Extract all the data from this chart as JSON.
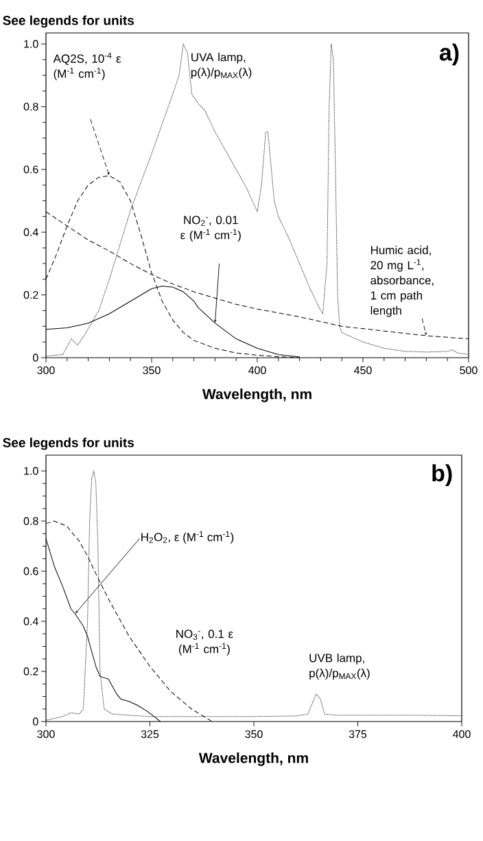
{
  "chart_data": [
    {
      "type": "line",
      "ylabel": "See legends for units",
      "xlabel": "Wavelength, nm",
      "annotations": [
        "a)"
      ],
      "xlim": [
        300,
        500
      ],
      "ylim": [
        0,
        1.035
      ],
      "xticks": [
        300,
        {
          "value": 310,
          "label": null
        },
        {
          "value": 320,
          "label": null
        },
        {
          "value": 330,
          "label": null
        },
        {
          "value": 340,
          "label": null
        },
        350,
        {
          "value": 360,
          "label": null
        },
        {
          "value": 370,
          "label": null
        },
        {
          "value": 380,
          "label": null
        },
        {
          "value": 390,
          "label": null
        },
        400,
        {
          "value": 410,
          "label": null
        },
        {
          "value": 420,
          "label": null
        },
        {
          "value": 430,
          "label": null
        },
        {
          "value": 440,
          "label": null
        },
        450,
        {
          "value": 460,
          "label": null
        },
        {
          "value": 470,
          "label": null
        },
        {
          "value": 480,
          "label": null
        },
        {
          "value": 490,
          "label": null
        },
        500
      ],
      "yticks": [
        0,
        {
          "value": 0.05,
          "label": null
        },
        {
          "value": 0.1,
          "label": null
        },
        {
          "value": 0.15,
          "label": null
        },
        0.2,
        {
          "value": 0.25,
          "label": null
        },
        {
          "value": 0.3,
          "label": null
        },
        {
          "value": 0.35,
          "label": null
        },
        0.4,
        {
          "value": 0.45,
          "label": null
        },
        {
          "value": 0.5,
          "label": null
        },
        {
          "value": 0.55,
          "label": null
        },
        0.6,
        {
          "value": 0.65,
          "label": null
        },
        {
          "value": 0.7,
          "label": null
        },
        {
          "value": 0.75,
          "label": null
        },
        0.8,
        {
          "value": 0.85,
          "label": null
        },
        {
          "value": 0.9,
          "label": null
        },
        {
          "value": 0.95,
          "label": null
        },
        {
          "value": 1,
          "label": "1.0"
        }
      ],
      "series": [
        {
          "name": "AQ2S, 10$^{-4}$ ε (M$^{-1}$ cm$^{-1}$)",
          "color": "#000000",
          "line_style": "dashed",
          "x": [
            300,
            305,
            310,
            315,
            320,
            325,
            330,
            335,
            340,
            345,
            350,
            355,
            360,
            365,
            370,
            380,
            390,
            400,
            410,
            420
          ],
          "values": [
            0.25,
            0.33,
            0.42,
            0.5,
            0.55,
            0.575,
            0.58,
            0.56,
            0.5,
            0.39,
            0.27,
            0.18,
            0.12,
            0.08,
            0.055,
            0.03,
            0.015,
            0.008,
            0.003,
            0
          ]
        },
        {
          "name": "UVA lamp, p(λ)/p$_{MAX}$(λ)",
          "color": "#000000",
          "line_style": "dotted",
          "x": [
            300,
            308,
            312,
            315,
            318,
            325,
            330,
            340,
            350,
            360,
            363,
            365,
            367,
            369,
            372,
            375,
            380,
            385,
            390,
            395,
            400,
            402,
            404,
            405,
            406,
            408,
            410,
            415,
            420,
            425,
            430,
            431,
            433,
            434,
            435,
            436,
            437,
            438,
            439,
            440,
            450,
            460,
            470,
            480,
            490,
            492,
            495,
            500
          ],
          "values": [
            0.005,
            0.01,
            0.06,
            0.04,
            0.07,
            0.15,
            0.25,
            0.47,
            0.65,
            0.84,
            0.9,
            1.0,
            0.97,
            0.84,
            0.81,
            0.79,
            0.72,
            0.66,
            0.6,
            0.54,
            0.465,
            0.55,
            0.72,
            0.72,
            0.65,
            0.5,
            0.45,
            0.38,
            0.3,
            0.22,
            0.15,
            0.14,
            0.3,
            0.8,
            1.0,
            0.95,
            0.6,
            0.2,
            0.1,
            0.08,
            0.05,
            0.03,
            0.02,
            0.018,
            0.02,
            0.025,
            0.015,
            0.01
          ]
        },
        {
          "name": "NO$_{2}$$^{-}$, 0.01 ε (M$^{-1}$ cm$^{-1}$)",
          "color": "#000000",
          "line_style": "solid",
          "x": [
            300,
            310,
            320,
            330,
            340,
            350,
            355,
            360,
            365,
            370,
            372,
            380,
            390,
            400,
            410,
            420
          ],
          "values": [
            0.09,
            0.095,
            0.11,
            0.14,
            0.18,
            0.22,
            0.228,
            0.225,
            0.21,
            0.18,
            0.16,
            0.11,
            0.06,
            0.03,
            0.01,
            0.002
          ]
        },
        {
          "name": "Humic acid, 20 mg L$^{-1}$, absorbance, 1 cm path length",
          "color": "#000000",
          "line_style": "dashed",
          "x": [
            300,
            310,
            320,
            330,
            340,
            350,
            360,
            370,
            380,
            390,
            400,
            420,
            440,
            460,
            480,
            500
          ],
          "values": [
            0.465,
            0.42,
            0.375,
            0.34,
            0.3,
            0.265,
            0.235,
            0.21,
            0.19,
            0.17,
            0.155,
            0.13,
            0.1,
            0.085,
            0.07,
            0.06
          ]
        }
      ]
    },
    {
      "type": "line",
      "ylabel": "See legends for units",
      "xlabel": "Wavelength, nm",
      "annotations": [
        "b)"
      ],
      "xlim": [
        300,
        400
      ],
      "ylim": [
        0,
        1.063
      ],
      "xticks": [
        300,
        325,
        350,
        375,
        400
      ],
      "yticks": [
        0,
        {
          "value": 0.05,
          "label": null
        },
        {
          "value": 0.1,
          "label": null
        },
        {
          "value": 0.15,
          "label": null
        },
        0.2,
        {
          "value": 0.25,
          "label": null
        },
        {
          "value": 0.3,
          "label": null
        },
        {
          "value": 0.35,
          "label": null
        },
        0.4,
        {
          "value": 0.45,
          "label": null
        },
        {
          "value": 0.5,
          "label": null
        },
        {
          "value": 0.55,
          "label": null
        },
        0.6,
        {
          "value": 0.65,
          "label": null
        },
        {
          "value": 0.7,
          "label": null
        },
        {
          "value": 0.75,
          "label": null
        },
        0.8,
        {
          "value": 0.85,
          "label": null
        },
        {
          "value": 0.9,
          "label": null
        },
        {
          "value": 0.95,
          "label": null
        },
        {
          "value": 1,
          "label": "1.0"
        }
      ],
      "series": [
        {
          "name": "H$_{2}$O$_{2}$, ε (M$^{-1}$ cm$^{-1}$)",
          "color": "#000000",
          "line_style": "solid",
          "x": [
            300,
            302,
            304,
            306,
            307,
            309,
            310,
            311,
            312,
            313,
            314,
            315,
            316,
            317,
            318,
            320,
            322,
            324,
            326,
            327.5
          ],
          "values": [
            0.73,
            0.62,
            0.54,
            0.45,
            0.43,
            0.38,
            0.34,
            0.28,
            0.22,
            0.18,
            0.175,
            0.17,
            0.14,
            0.11,
            0.09,
            0.08,
            0.065,
            0.045,
            0.02,
            0
          ]
        },
        {
          "name": "NO$_{3}$$^{-}$, 0.1 ε (M$^{-1}$ cm$^{-1}$)",
          "color": "#000000",
          "line_style": "dashed",
          "x": [
            300,
            302,
            305,
            308,
            310,
            312,
            315,
            318,
            320,
            325,
            330,
            335,
            340
          ],
          "values": [
            0.79,
            0.8,
            0.78,
            0.72,
            0.66,
            0.59,
            0.49,
            0.4,
            0.34,
            0.22,
            0.12,
            0.05,
            0
          ]
        },
        {
          "name": "UVB lamp, p(λ)/p$_{MAX}$(λ)",
          "color": "#000000",
          "line_style": "dotted",
          "x": [
            300,
            304,
            306,
            308,
            309,
            310,
            310.5,
            311,
            311.5,
            312,
            312.5,
            313,
            314,
            316,
            320,
            325,
            330,
            340,
            350,
            360,
            363,
            364,
            365,
            366,
            367,
            370,
            380,
            390,
            400
          ],
          "values": [
            0.005,
            0.02,
            0.035,
            0.03,
            0.05,
            0.4,
            0.8,
            0.97,
            1.0,
            0.95,
            0.7,
            0.2,
            0.05,
            0.03,
            0.025,
            0.02,
            0.02,
            0.02,
            0.02,
            0.022,
            0.03,
            0.07,
            0.11,
            0.09,
            0.03,
            0.025,
            0.025,
            0.025,
            0.023
          ]
        }
      ]
    }
  ]
}
